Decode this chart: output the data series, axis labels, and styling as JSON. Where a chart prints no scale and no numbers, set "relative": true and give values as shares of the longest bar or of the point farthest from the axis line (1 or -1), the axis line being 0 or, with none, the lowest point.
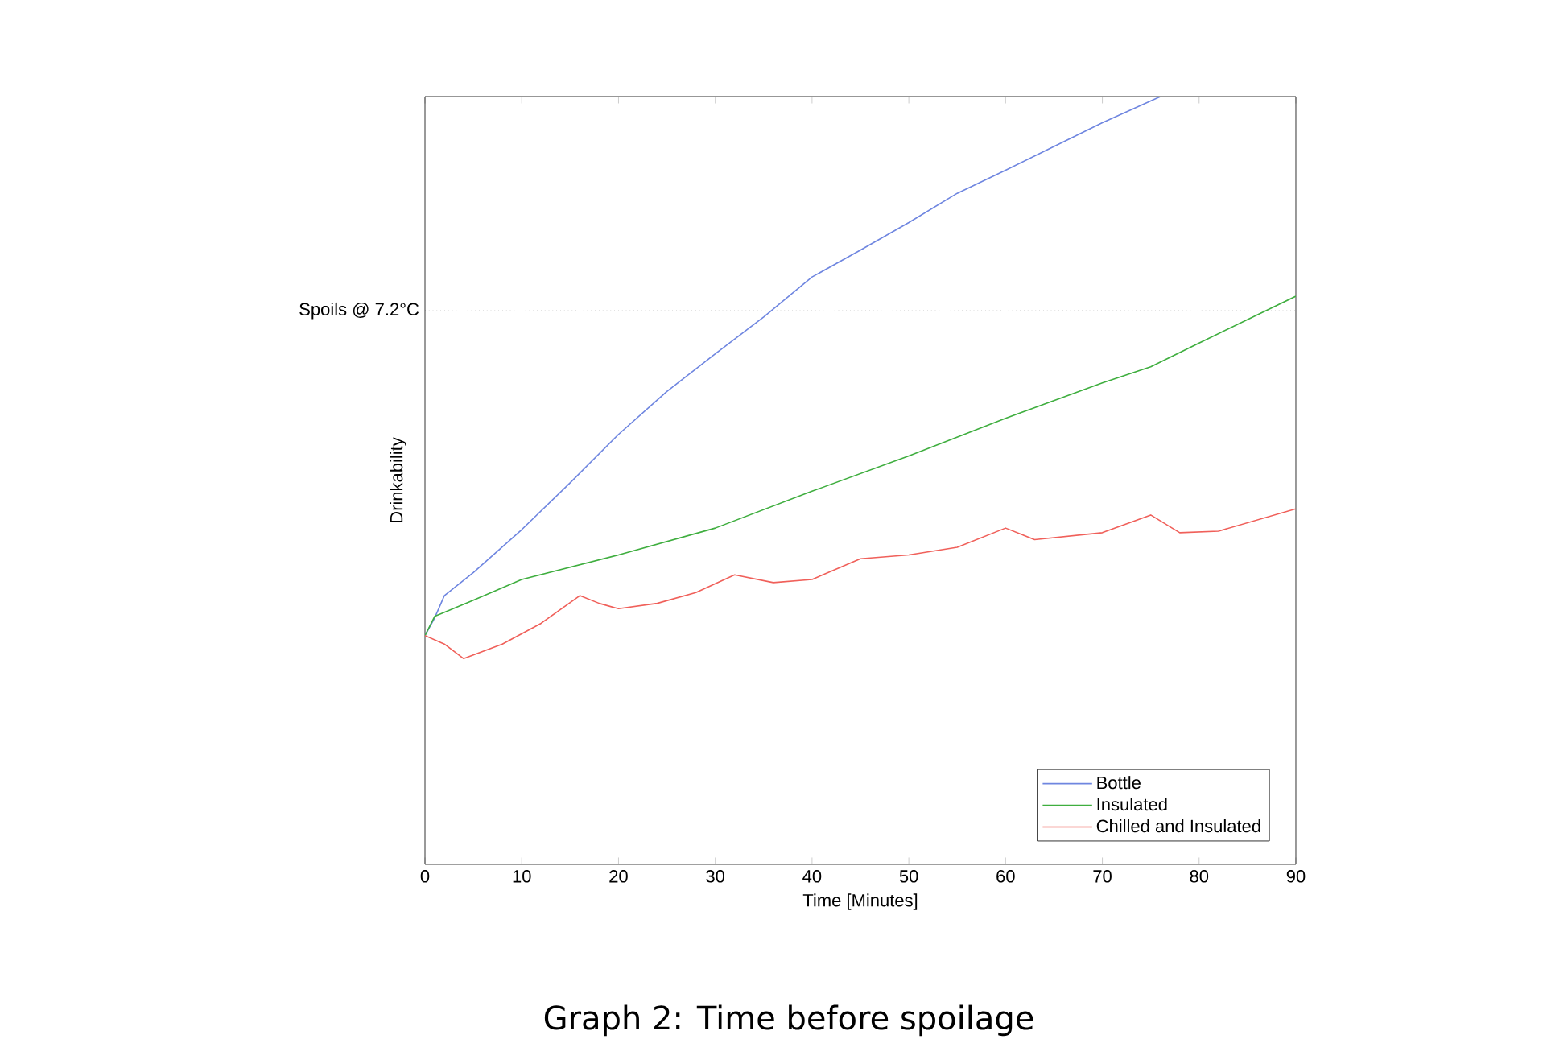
{
  "chart_data": {
    "type": "line",
    "title": "Graph 2: Time before spoilage",
    "xlabel": "Time [Minutes]",
    "ylabel": "Drinkability",
    "relative": true,
    "xlim": [
      0,
      90
    ],
    "xticks": [
      0,
      10,
      20,
      30,
      40,
      50,
      60,
      70,
      80,
      90
    ],
    "series": [
      {
        "name": "Bottle",
        "color": "#6f86e0",
        "x": [
          0,
          1,
          2,
          5,
          10,
          15,
          20,
          25,
          30,
          35,
          40,
          45,
          50,
          55,
          60,
          65,
          70,
          76
        ],
        "values": [
          0.298,
          0.321,
          0.35,
          0.38,
          0.436,
          0.497,
          0.56,
          0.616,
          0.665,
          0.713,
          0.765,
          0.8,
          0.836,
          0.874,
          0.904,
          0.935,
          0.966,
          1.0
        ]
      },
      {
        "name": "Insulated",
        "color": "#3fae3f",
        "x": [
          0,
          1,
          5,
          10,
          20,
          30,
          40,
          50,
          60,
          70,
          75,
          80,
          90
        ],
        "values": [
          0.298,
          0.323,
          0.344,
          0.371,
          0.403,
          0.438,
          0.486,
          0.532,
          0.581,
          0.627,
          0.648,
          0.679,
          0.74
        ]
      },
      {
        "name": "Chilled and Insulated",
        "color": "#f0605a",
        "x": [
          0,
          2,
          4,
          8,
          12,
          16,
          18,
          20,
          24,
          28,
          32,
          36,
          40,
          45,
          50,
          55,
          60,
          63,
          70,
          75,
          78,
          82,
          90
        ],
        "values": [
          0.298,
          0.287,
          0.268,
          0.287,
          0.314,
          0.35,
          0.34,
          0.333,
          0.34,
          0.354,
          0.377,
          0.367,
          0.371,
          0.398,
          0.403,
          0.413,
          0.438,
          0.423,
          0.432,
          0.455,
          0.432,
          0.434,
          0.463
        ]
      }
    ],
    "ref_lines": [
      {
        "axis": "y",
        "value": 0.721,
        "label": "Spoils @ 7.2°C",
        "line_style": "dotted",
        "color": "#000000"
      }
    ],
    "legend": "bottom right",
    "grid": false,
    "marker": "none",
    "line_style": "solid"
  }
}
